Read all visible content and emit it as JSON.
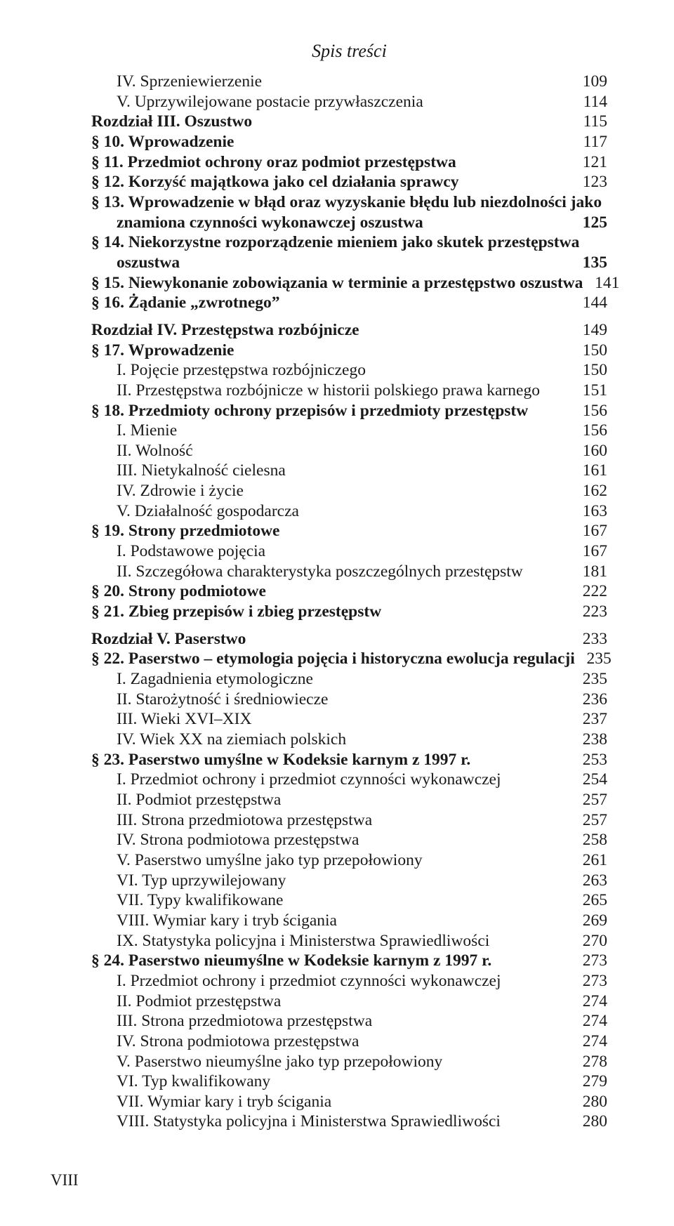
{
  "header_title": "Spis treści",
  "page_number_footer": "VIII",
  "entries": [
    {
      "indent": 1,
      "bold": false,
      "text": "IV. Sprzeniewierzenie",
      "page": "109"
    },
    {
      "indent": 1,
      "bold": false,
      "text": "V. Uprzywilejowane postacie przywłaszczenia",
      "page": "114"
    },
    {
      "indent": 0,
      "bold": true,
      "text": "Rozdział III. Oszustwo",
      "page": "115"
    },
    {
      "indent": 0,
      "bold": true,
      "text": "§ 10. Wprowadzenie",
      "page": "117"
    },
    {
      "indent": 0,
      "bold": true,
      "text": "§ 11. Przedmiot ochrony oraz podmiot przestępstwa",
      "page": "121"
    },
    {
      "indent": 0,
      "bold": true,
      "text": "§ 12. Korzyść majątkowa jako cel działania sprawcy",
      "page": "123"
    },
    {
      "indent": 0,
      "bold": true,
      "multiline": true,
      "line1": "§ 13. Wprowadzenie w błąd oraz wyzyskanie błędu lub niezdolności jako",
      "cont_indent": "ind1",
      "line2": "znamiona czynności wykonawczej oszustwa",
      "page": "125"
    },
    {
      "indent": 0,
      "bold": true,
      "multiline": true,
      "line1": "§ 14. Niekorzystne rozporządzenie mieniem jako skutek przestępstwa",
      "cont_indent": "ind1",
      "line2": "oszustwa",
      "page": "135"
    },
    {
      "indent": 0,
      "bold": true,
      "text": "§ 15. Niewykonanie zobowiązania w terminie a przestępstwo oszustwa",
      "nodots": true,
      "dots_short": " . .",
      "page": "141"
    },
    {
      "indent": 0,
      "bold": true,
      "text": "§ 16. Żądanie „zwrotnego”",
      "page": "144"
    },
    {
      "gap": true
    },
    {
      "indent": 0,
      "bold": true,
      "text": "Rozdział IV. Przestępstwa rozbójnicze",
      "page": "149"
    },
    {
      "indent": 0,
      "bold": true,
      "text": "§ 17. Wprowadzenie",
      "page": "150"
    },
    {
      "indent": 1,
      "bold": false,
      "text": "I. Pojęcie przestępstwa rozbójniczego",
      "page": "150"
    },
    {
      "indent": 1,
      "bold": false,
      "text": "II. Przestępstwa rozbójnicze w historii polskiego prawa karnego",
      "page": "151"
    },
    {
      "indent": 0,
      "bold": true,
      "text": "§ 18. Przedmioty ochrony przepisów i przedmioty przestępstw",
      "page": "156"
    },
    {
      "indent": 1,
      "bold": false,
      "text": "I. Mienie",
      "page": "156"
    },
    {
      "indent": 1,
      "bold": false,
      "text": "II. Wolność",
      "page": "160"
    },
    {
      "indent": 1,
      "bold": false,
      "text": "III. Nietykalność cielesna",
      "page": "161"
    },
    {
      "indent": 1,
      "bold": false,
      "text": "IV. Zdrowie i życie",
      "page": "162"
    },
    {
      "indent": 1,
      "bold": false,
      "text": "V. Działalność gospodarcza",
      "page": "163"
    },
    {
      "indent": 0,
      "bold": true,
      "text": "§ 19. Strony przedmiotowe",
      "page": "167"
    },
    {
      "indent": 1,
      "bold": false,
      "text": "I. Podstawowe pojęcia",
      "page": "167"
    },
    {
      "indent": 1,
      "bold": false,
      "text": "II. Szczegółowa charakterystyka poszczególnych przestępstw",
      "page": "181"
    },
    {
      "indent": 0,
      "bold": true,
      "text": "§ 20. Strony podmiotowe",
      "page": "222"
    },
    {
      "indent": 0,
      "bold": true,
      "text": "§ 21. Zbieg przepisów i zbieg przestępstw",
      "page": "223"
    },
    {
      "gap": true
    },
    {
      "indent": 0,
      "bold": true,
      "text": "Rozdział V. Paserstwo",
      "page": "233"
    },
    {
      "indent": 0,
      "bold": true,
      "text": "§ 22. Paserstwo – etymologia pojęcia i historyczna ewolucja regulacji",
      "nodots": true,
      "dots_short": " . . .",
      "page": "235"
    },
    {
      "indent": 1,
      "bold": false,
      "text": "I. Zagadnienia etymologiczne",
      "page": "235"
    },
    {
      "indent": 1,
      "bold": false,
      "text": "II. Starożytność i średniowiecze",
      "page": "236"
    },
    {
      "indent": 1,
      "bold": false,
      "text": "III. Wieki XVI–XIX",
      "page": "237"
    },
    {
      "indent": 1,
      "bold": false,
      "text": "IV. Wiek XX na ziemiach polskich",
      "page": "238"
    },
    {
      "indent": 0,
      "bold": true,
      "text": "§ 23. Paserstwo umyślne w Kodeksie karnym z 1997 r.",
      "page": "253"
    },
    {
      "indent": 1,
      "bold": false,
      "text": "I. Przedmiot ochrony i przedmiot czynności wykonawczej",
      "page": "254"
    },
    {
      "indent": 1,
      "bold": false,
      "text": "II. Podmiot przestępstwa",
      "page": "257"
    },
    {
      "indent": 1,
      "bold": false,
      "text": "III. Strona przedmiotowa przestępstwa",
      "page": "257"
    },
    {
      "indent": 1,
      "bold": false,
      "text": "IV. Strona podmiotowa przestępstwa",
      "page": "258"
    },
    {
      "indent": 1,
      "bold": false,
      "text": "V. Paserstwo umyślne jako typ przepołowiony",
      "page": "261"
    },
    {
      "indent": 1,
      "bold": false,
      "text": "VI. Typ uprzywilejowany",
      "page": "263"
    },
    {
      "indent": 1,
      "bold": false,
      "text": "VII. Typy kwalifikowane",
      "page": "265"
    },
    {
      "indent": 1,
      "bold": false,
      "text": "VIII. Wymiar kary i tryb ścigania",
      "page": "269"
    },
    {
      "indent": 1,
      "bold": false,
      "text": "IX. Statystyka policyjna i Ministerstwa Sprawiedliwości",
      "page": "270"
    },
    {
      "indent": 0,
      "bold": true,
      "text": "§ 24. Paserstwo nieumyślne w Kodeksie karnym z 1997 r.",
      "page": "273"
    },
    {
      "indent": 1,
      "bold": false,
      "text": "I. Przedmiot ochrony i przedmiot czynności wykonawczej",
      "page": "273"
    },
    {
      "indent": 1,
      "bold": false,
      "text": "II. Podmiot przestępstwa",
      "page": "274"
    },
    {
      "indent": 1,
      "bold": false,
      "text": "III. Strona przedmiotowa przestępstwa",
      "page": "274"
    },
    {
      "indent": 1,
      "bold": false,
      "text": "IV. Strona podmiotowa przestępstwa",
      "page": "274"
    },
    {
      "indent": 1,
      "bold": false,
      "text": "V. Paserstwo nieumyślne jako typ przepołowiony",
      "page": "278"
    },
    {
      "indent": 1,
      "bold": false,
      "text": "VI. Typ kwalifikowany",
      "page": "279"
    },
    {
      "indent": 1,
      "bold": false,
      "text": "VII. Wymiar kary i tryb ścigania",
      "page": "280"
    },
    {
      "indent": 1,
      "bold": false,
      "text": "VIII. Statystyka policyjna i Ministerstwa Sprawiedliwości",
      "page": "280"
    }
  ]
}
